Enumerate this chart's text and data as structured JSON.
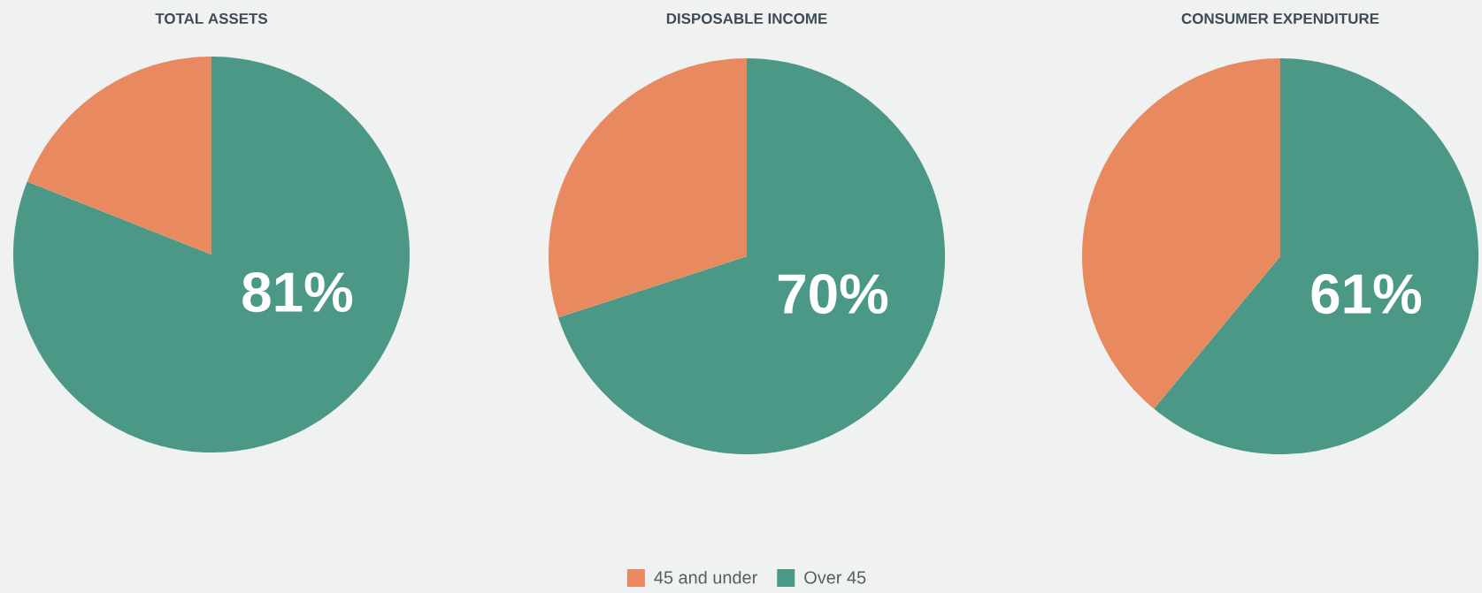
{
  "chart_data": [
    {
      "type": "pie",
      "title": "TOTAL ASSETS",
      "categories": [
        null,
        null
      ],
      "values": [
        19,
        81
      ],
      "colors": [
        "#e8895f",
        "#4a9885"
      ],
      "value_labels": [
        null,
        "81%"
      ]
    },
    {
      "type": "pie",
      "title": "DISPOSABLE INCOME",
      "categories": [
        "45 and under",
        "Over 45"
      ],
      "values": [
        30,
        70
      ],
      "colors": [
        "#e8895f",
        "#4a9885"
      ],
      "value_labels": [
        null,
        "70%"
      ],
      "legend": "bottom"
    },
    {
      "type": "pie",
      "title": "CONSUMER EXPENDITURE",
      "categories": [
        null,
        null
      ],
      "values": [
        39,
        61
      ],
      "colors": [
        "#e8895f",
        "#4a9885"
      ],
      "value_labels": [
        null,
        "61%"
      ]
    }
  ]
}
